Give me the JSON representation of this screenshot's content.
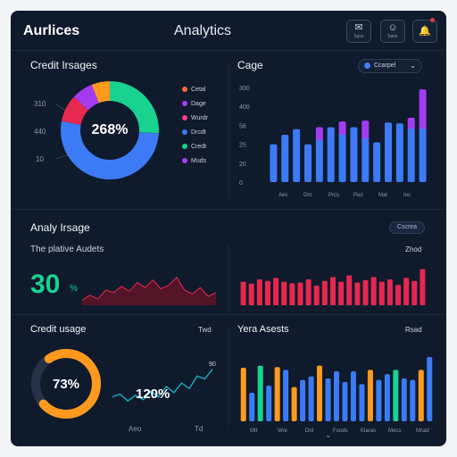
{
  "header": {
    "brand": "Aurlices",
    "app_title": "Analytics",
    "buttons": [
      {
        "glyph": "✉",
        "label": "Spce"
      },
      {
        "glyph": "☺",
        "label": "Sank"
      },
      {
        "glyph": "🔔",
        "label": ""
      }
    ]
  },
  "credit_images": {
    "title": "Credit Irsages",
    "center_value": "268%",
    "axis_labels": [
      "310",
      "440",
      "10"
    ],
    "legend": [
      {
        "label": "Cetal",
        "color": "#ff6a3d"
      },
      {
        "label": "Dage",
        "color": "#a33cf0"
      },
      {
        "label": "Wurdr",
        "color": "#ff3d86"
      },
      {
        "label": "Drcdt",
        "color": "#3c7bf5"
      },
      {
        "label": "Credt",
        "color": "#18d28f"
      },
      {
        "label": "Muds",
        "color": "#a33cf0"
      }
    ]
  },
  "cage": {
    "title": "Cage",
    "select_label": "Ccarpel",
    "y_labels": [
      "300",
      "400",
      "58",
      "25",
      "20",
      "0"
    ],
    "x_labels": [
      "Aes",
      "Dm",
      "Prcs",
      "Poo",
      "Mal",
      "Inc"
    ]
  },
  "analy": {
    "title": "Analy Irsage",
    "pill_label": "Cscrea",
    "subtitle": "The plative Audets",
    "right_label": "Zhod",
    "big_value": "30",
    "big_unit": "%"
  },
  "credit_usage": {
    "title": "Credit usage",
    "right_label": "Twd",
    "donut_value": "73%",
    "line_value": "120%",
    "line_tag": "90",
    "x_labels": [
      "Aeo",
      "Td"
    ]
  },
  "yera": {
    "title": "Yera Asests",
    "right_label": "Rsad",
    "x_labels": [
      "Mtt",
      "Wre",
      "Dnl",
      "Foods",
      "Klaras",
      "Mecs",
      "Mcad"
    ]
  },
  "colors": {
    "frame": "#0f1a2c",
    "blue": "#3c7bf5",
    "purple": "#a33cf0",
    "green": "#18d28f",
    "orange": "#ff9a1f",
    "red": "#e6284f"
  },
  "chart_data": [
    {
      "type": "pie",
      "title": "Credit Irsages",
      "slices": [
        {
          "label": "Credt",
          "value": 26,
          "color": "#18d28f"
        },
        {
          "label": "Drcdt",
          "value": 52,
          "color": "#3c7bf5"
        },
        {
          "label": "Wurdr",
          "value": 9,
          "color": "#e6284f"
        },
        {
          "label": "Dage",
          "value": 7,
          "color": "#a33cf0"
        },
        {
          "label": "Cetal",
          "value": 6,
          "color": "#ff9a1f"
        }
      ]
    },
    {
      "type": "bar",
      "title": "Cage",
      "ylim": [
        0,
        100
      ],
      "series": [
        {
          "values": [
            40,
            50,
            56,
            40,
            46,
            58,
            52,
            58,
            48,
            42,
            63,
            62,
            58,
            58
          ]
        },
        {
          "values": [
            0,
            0,
            0,
            0,
            12,
            0,
            12,
            0,
            17,
            0,
            0,
            0,
            10,
            40
          ]
        }
      ]
    },
    {
      "type": "area",
      "title": "The plative Audets",
      "values": [
        4,
        8,
        5,
        12,
        10,
        15,
        11,
        18,
        14,
        20,
        13,
        16,
        22,
        12,
        9,
        14,
        7,
        10
      ]
    },
    {
      "type": "bar",
      "title": "Zhod",
      "values": [
        60,
        55,
        66,
        62,
        70,
        60,
        56,
        58,
        66,
        50,
        62,
        72,
        60,
        76,
        58,
        64,
        72,
        60,
        66,
        52,
        70,
        62,
        92
      ]
    },
    {
      "type": "pie",
      "title": "Credit usage",
      "slices": [
        {
          "label": "used",
          "value": 73,
          "color": "#ff9a1f"
        },
        {
          "label": "rest",
          "value": 27,
          "color": "#27324a"
        }
      ]
    },
    {
      "type": "line",
      "title": "Twd",
      "values": [
        40,
        44,
        34,
        42,
        36,
        48,
        40,
        55,
        46,
        60,
        52,
        70,
        66,
        80
      ]
    },
    {
      "type": "bar",
      "title": "Yera Asests",
      "ylim": [
        0,
        100
      ],
      "series": [
        {
          "values": [
            75,
            40,
            78,
            50,
            76,
            72,
            48,
            58,
            63,
            78,
            60,
            70,
            55,
            70,
            52,
            72,
            58,
            66,
            72,
            60,
            58,
            72,
            90
          ]
        },
        {
          "colors": [
            "#ff9a1f",
            "#3c7bf5",
            "#18d28f",
            "#3c7bf5",
            "#ff9a1f",
            "#3c7bf5",
            "#ff9a1f",
            "#3c7bf5",
            "#3c7bf5",
            "#ff9a1f",
            "#3c7bf5",
            "#3c7bf5",
            "#3c7bf5",
            "#3c7bf5",
            "#3c7bf5",
            "#ff9a1f",
            "#3c7bf5",
            "#3c7bf5",
            "#18d28f",
            "#3c7bf5",
            "#3c7bf5",
            "#ff9a1f",
            "#3c7bf5"
          ]
        }
      ]
    }
  ]
}
